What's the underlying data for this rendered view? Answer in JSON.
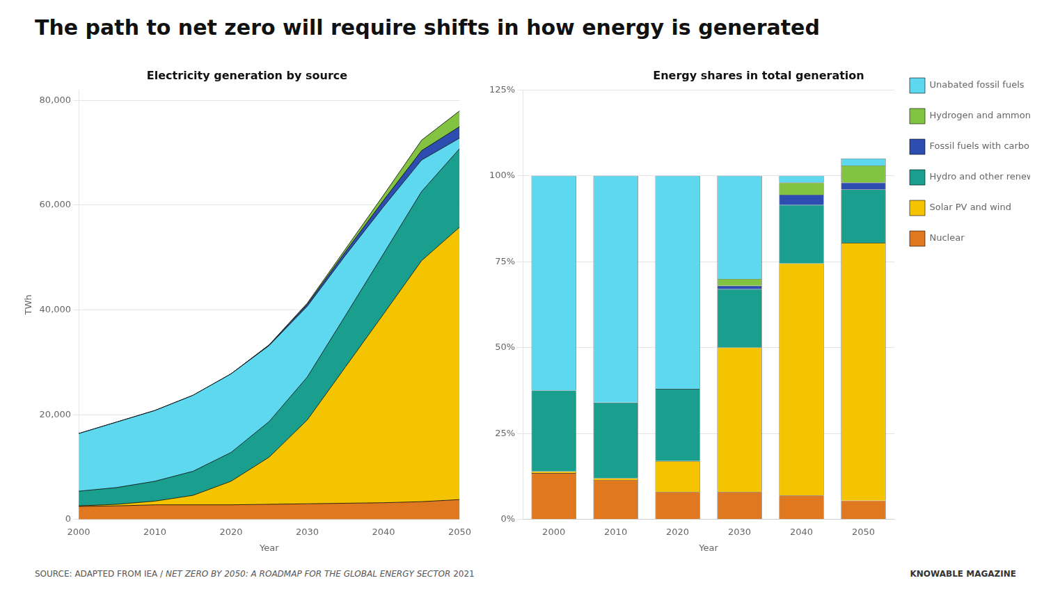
{
  "title": "The path to net zero will require shifts in how energy is generated",
  "annotations": [
    "SOURCE: ADAPTED FROM IEA /",
    " NET ZERO BY 2050: A ROADMAP FOR THE GLOBAL ENERGY SECTOR",
    " 2021",
    "KNOWABLE MAGAZINE"
  ],
  "chart_data": [
    {
      "type": "area",
      "title": "Electricity generation by source",
      "xlabel": "Year",
      "ylabel": "TWh",
      "stacked": true,
      "grid": "y",
      "x": [
        2000,
        2005,
        2010,
        2015,
        2020,
        2025,
        2030,
        2035,
        2040,
        2045,
        2050
      ],
      "xlim": [
        2000,
        2050
      ],
      "xticks": [
        2000,
        2010,
        2020,
        2030,
        2040,
        2050
      ],
      "ylim": [
        0,
        82000
      ],
      "yticks": [
        0,
        {
          "value": 20000,
          "label": "20,000"
        },
        {
          "value": 40000,
          "label": "40,000"
        },
        {
          "value": 60000,
          "label": "60,000"
        },
        {
          "value": 80000,
          "label": "80,000"
        }
      ],
      "series": [
        {
          "name": "Nuclear",
          "color": "#E07820",
          "values": [
            2500,
            2600,
            2800,
            2800,
            2800,
            2900,
            3000,
            3100,
            3200,
            3400,
            3800
          ]
        },
        {
          "name": "Solar PV and wind",
          "color": "#F5C400",
          "values": [
            100,
            300,
            700,
            1800,
            4500,
            9000,
            16000,
            26000,
            36000,
            46000,
            52000
          ]
        },
        {
          "name": "Hydro and other renewables",
          "color": "#1A9E8E",
          "values": [
            2800,
            3200,
            3800,
            4600,
            5500,
            6800,
            8200,
            9800,
            11500,
            13200,
            15000
          ]
        },
        {
          "name": "Unabated fossil fuels",
          "color": "#5DD8EE",
          "values": [
            11000,
            12500,
            13500,
            14500,
            15000,
            14500,
            13500,
            11500,
            9000,
            6000,
            2000
          ]
        },
        {
          "name": "Fossil fuels with carbon capture",
          "color": "#2E4DB0",
          "values": [
            0,
            0,
            0,
            0,
            0,
            100,
            400,
            700,
            1200,
            1800,
            2200
          ]
        },
        {
          "name": "Hydrogen and ammonia",
          "color": "#82C341",
          "values": [
            0,
            0,
            0,
            0,
            0,
            50,
            200,
            500,
            1000,
            2000,
            3000
          ]
        }
      ]
    },
    {
      "type": "bar",
      "title": "Energy shares in total generation",
      "xlabel": "Year",
      "stacked": true,
      "grid": "y",
      "legend": "right",
      "categories": [
        "2000",
        "2010",
        "2020",
        "2030",
        "2040",
        "2050"
      ],
      "ylim": [
        0,
        125
      ],
      "yticks": [
        {
          "value": 0,
          "label": "0%"
        },
        {
          "value": 25,
          "label": "25%"
        },
        {
          "value": 50,
          "label": "50%"
        },
        {
          "value": 75,
          "label": "75%"
        },
        {
          "value": 100,
          "label": "100%"
        },
        {
          "value": 125,
          "label": "125%"
        }
      ],
      "series": [
        {
          "name": "Nuclear",
          "color": "#E07820",
          "values": [
            13.5,
            11.5,
            8.0,
            8.0,
            7.0,
            5.5
          ]
        },
        {
          "name": "Solar PV and wind",
          "color": "#F5C400",
          "values": [
            0.5,
            0.5,
            9.0,
            42.0,
            67.5,
            75.0
          ]
        },
        {
          "name": "Hydro and other renewables",
          "color": "#1A9E8E",
          "values": [
            23.5,
            22.0,
            21.0,
            17.0,
            17.0,
            15.5
          ]
        },
        {
          "name": "Fossil fuels with carbon capture",
          "color": "#2E4DB0",
          "values": [
            0.0,
            0.0,
            0.0,
            1.0,
            3.0,
            2.0
          ]
        },
        {
          "name": "Hydrogen and ammonia",
          "color": "#82C341",
          "values": [
            0.0,
            0.0,
            0.0,
            2.0,
            3.5,
            5.0
          ]
        },
        {
          "name": "Unabated fossil fuels",
          "color": "#5DD8EE",
          "values": [
            62.5,
            66.0,
            62.0,
            30.0,
            2.0,
            2.0
          ]
        }
      ]
    }
  ]
}
